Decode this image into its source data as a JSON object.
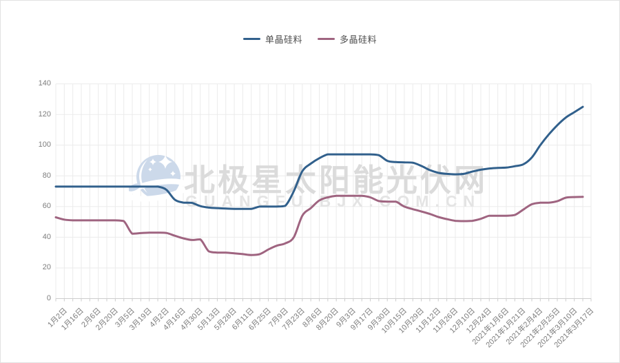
{
  "page": {
    "background": "#ffffff",
    "border_color": "#e2e2e2"
  },
  "colors": {
    "mono_line": "#31608c",
    "poly_line": "#9f6480",
    "gridline": "#ebebeb",
    "axis_line": "#cccccc",
    "axis_text": "#7d7d7d",
    "legend_text": "#4d4d4d",
    "watermark_text": "#dbdbdb",
    "watermark_logo": "#ccd9ea"
  },
  "watermark": {
    "title": "北极星太阳能光伏网",
    "subtitle": "GUANGFU.BJX.COM.CN",
    "logo": "moon-stars-logo"
  },
  "chart_data": {
    "type": "line",
    "title": "",
    "xlabel": "",
    "ylabel": "",
    "ylim": [
      0,
      140
    ],
    "y_ticks": [
      0,
      20,
      40,
      60,
      80,
      100,
      120,
      140
    ],
    "grid": true,
    "legend_position": "top",
    "x_labels_shown_every_2_points": [
      "1月2日",
      "1月16日",
      "2月6日",
      "2月20日",
      "3月5日",
      "3月19日",
      "4月2日",
      "4月16日",
      "4月30日",
      "5月13日",
      "5月28日",
      "6月11日",
      "6月25日",
      "7月9日",
      "7月23日",
      "8月6日",
      "8月20日",
      "9月3日",
      "9月17日",
      "9月30日",
      "10月15日",
      "10月29日",
      "11月12日",
      "11月26日",
      "12月10日",
      "12月24日",
      "2021年1月6日",
      "2021年1月21日",
      "2021年2月4日",
      "2021年2月25日",
      "2021年3月10日",
      "2021年3月17日"
    ],
    "series": [
      {
        "name": "单晶硅料",
        "color": "#31608c",
        "values": [
          73,
          73,
          73,
          73,
          73,
          73,
          73,
          73,
          73,
          73,
          73,
          73,
          73,
          71,
          64.5,
          62.6,
          62.4,
          60.3,
          59.3,
          59,
          58.7,
          58.5,
          58.5,
          58.5,
          60,
          60,
          60,
          60.5,
          70,
          83,
          88,
          91.5,
          94,
          94,
          94,
          94,
          94,
          94,
          93.5,
          89.8,
          89,
          88.8,
          88.6,
          86.5,
          83.8,
          82,
          81.3,
          81,
          81.3,
          82.8,
          84,
          84.8,
          85.2,
          85.4,
          86.3,
          87.5,
          92,
          100,
          107,
          113,
          118,
          121.5,
          125
        ]
      },
      {
        "name": "多晶硅料",
        "color": "#9f6480",
        "values": [
          53,
          51.5,
          51,
          51,
          51,
          51,
          51,
          51,
          50.5,
          42.3,
          42.7,
          43,
          43,
          42.8,
          41,
          39.3,
          38.2,
          38.6,
          30.8,
          30,
          30,
          29.5,
          29,
          28.4,
          29,
          32,
          34.5,
          36,
          40,
          54,
          59,
          64,
          66,
          67,
          67,
          67,
          67,
          66,
          63.6,
          63.2,
          63.2,
          60,
          58.3,
          56.8,
          55.2,
          53.2,
          51.8,
          50.7,
          50.5,
          50.7,
          52,
          54,
          54,
          54,
          54.5,
          58,
          61.5,
          62.5,
          62.5,
          63.5,
          65.8,
          66.2,
          66.3
        ]
      }
    ]
  }
}
